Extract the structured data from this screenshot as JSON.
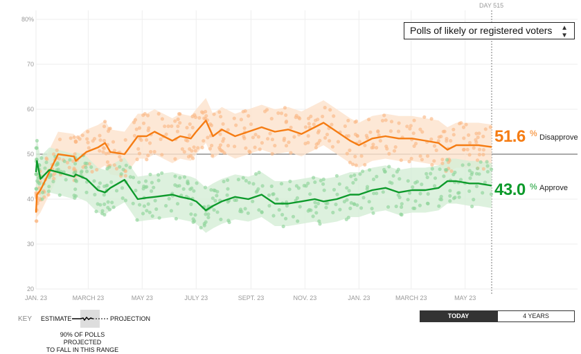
{
  "header": {
    "day_label": "DAY 515"
  },
  "selector": {
    "value": "Polls of likely or registered voters",
    "arrow_icon": "up-down-arrows-icon"
  },
  "current": {
    "disapprove": {
      "value": "51.6",
      "unit": "%",
      "label": "Disapprove",
      "color": "#f57c13"
    },
    "approve": {
      "value": "43.0",
      "unit": "%",
      "label": "Approve",
      "color": "#0d9a2b"
    }
  },
  "key": {
    "title": "KEY",
    "estimate": "ESTIMATE",
    "projection": "PROJECTION",
    "note_line1": "90% OF POLLS PROJECTED",
    "note_line2": "TO FALL IN THIS RANGE"
  },
  "buttons": {
    "today": "TODAY",
    "four_years": "4 YEARS",
    "active": "today"
  },
  "chart_data": {
    "type": "line",
    "ylim": [
      20,
      80
    ],
    "y_ticks": [
      20,
      30,
      40,
      50,
      60,
      70,
      80
    ],
    "y_tick_labels": [
      "20",
      "30",
      "40",
      "50",
      "60",
      "70",
      "80%"
    ],
    "xlim": [
      "2021-01-23",
      "2022-06-22"
    ],
    "x_ticks": [
      "2021-01-23",
      "2021-03-23",
      "2021-05-23",
      "2021-07-23",
      "2021-09-23",
      "2021-11-23",
      "2022-01-23",
      "2022-03-23",
      "2022-05-23"
    ],
    "x_tick_labels": [
      "JAN. 23",
      "MARCH 23",
      "MAY 23",
      "JULY 23",
      "SEPT. 23",
      "NOV. 23",
      "JAN. 23",
      "MARCH 23",
      "MAY 23"
    ],
    "reference_line": 50,
    "grid": true,
    "today": "2022-06-22",
    "range_halfwidth": 5,
    "dates": [
      "2021-01-23",
      "2021-01-24",
      "2021-01-28",
      "2021-02-07",
      "2021-02-17",
      "2021-03-07",
      "2021-03-09",
      "2021-03-21",
      "2021-04-03",
      "2021-04-11",
      "2021-04-17",
      "2021-05-03",
      "2021-05-18",
      "2021-05-28",
      "2021-06-06",
      "2021-06-26",
      "2021-07-05",
      "2021-07-17",
      "2021-07-23",
      "2021-08-03",
      "2021-08-11",
      "2021-08-21",
      "2021-09-05",
      "2021-09-20",
      "2021-10-05",
      "2021-10-20",
      "2021-11-04",
      "2021-11-19",
      "2021-12-04",
      "2021-12-14",
      "2021-12-29",
      "2022-01-13",
      "2022-01-23",
      "2022-02-07",
      "2022-02-22",
      "2022-03-09",
      "2022-03-24",
      "2022-04-08",
      "2022-04-23",
      "2022-05-03",
      "2022-05-13",
      "2022-05-28",
      "2022-06-07",
      "2022-06-22"
    ],
    "series": [
      {
        "name": "Disapprove",
        "color": "#f57c13",
        "band_color": "#fde2cc",
        "dot_color": "#fbb985",
        "values": [
          37,
          41,
          42,
          46,
          50,
          49.5,
          48.5,
          50.5,
          51.5,
          52.5,
          50.5,
          50,
          54,
          54,
          55,
          53,
          54,
          53.5,
          55,
          57.5,
          54,
          55.5,
          54,
          55,
          56,
          55,
          55.5,
          54.5,
          56,
          57,
          55,
          53,
          52,
          53.5,
          54,
          53.5,
          53.5,
          53,
          52.5,
          51,
          52,
          52,
          52,
          51.6
        ]
      },
      {
        "name": "Approve",
        "color": "#0d9a2b",
        "band_color": "#d4eed6",
        "dot_color": "#8fd49a",
        "values": [
          46,
          48.5,
          44.5,
          46.5,
          46,
          45,
          45.5,
          44.5,
          42,
          41.5,
          42.5,
          44.3,
          40,
          40.3,
          40.5,
          41,
          40.5,
          40,
          39.5,
          37.5,
          38.5,
          39.5,
          40.5,
          40,
          41,
          39,
          39,
          39.5,
          40,
          39.5,
          40,
          41,
          41,
          42,
          42.5,
          41.5,
          42,
          42,
          42.5,
          44,
          44,
          43.5,
          43.5,
          43
        ]
      }
    ]
  }
}
